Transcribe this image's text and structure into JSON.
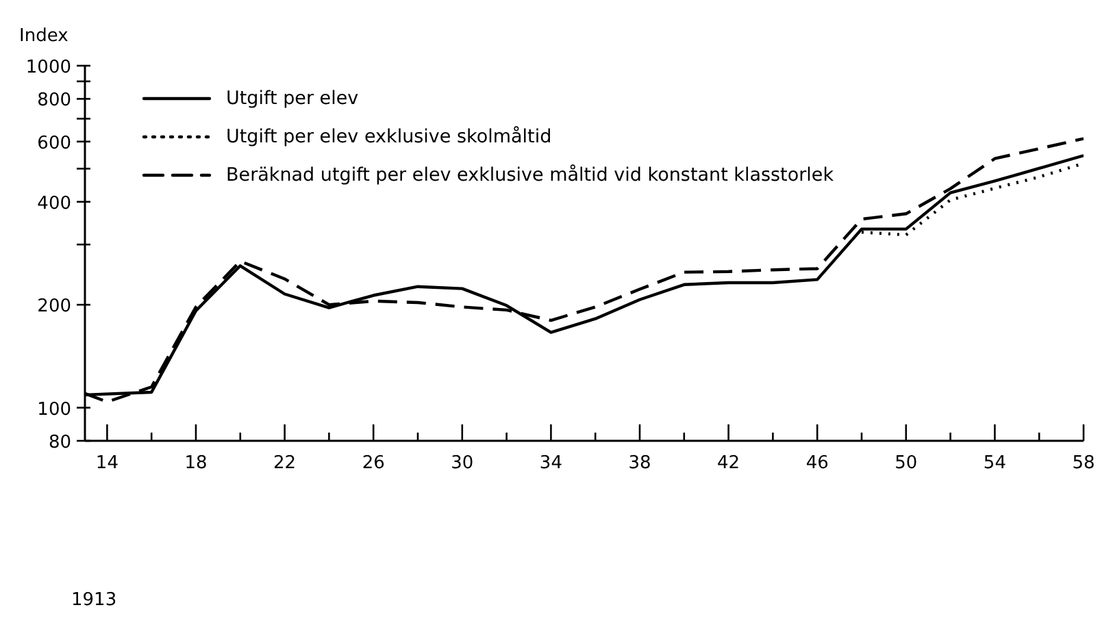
{
  "chart_data": {
    "type": "line",
    "ylabel": "Index",
    "annotations": [
      "1913"
    ],
    "log": "y",
    "legend": "top left",
    "marker": "none",
    "xlim": [
      1913,
      1958
    ],
    "xticks": [
      {
        "value": 1914,
        "label": "14"
      },
      {
        "value": 1916,
        "label": null
      },
      {
        "value": 1918,
        "label": "18"
      },
      {
        "value": 1920,
        "label": null
      },
      {
        "value": 1922,
        "label": "22"
      },
      {
        "value": 1924,
        "label": null
      },
      {
        "value": 1926,
        "label": "26"
      },
      {
        "value": 1928,
        "label": null
      },
      {
        "value": 1930,
        "label": "30"
      },
      {
        "value": 1932,
        "label": null
      },
      {
        "value": 1934,
        "label": "34"
      },
      {
        "value": 1936,
        "label": null
      },
      {
        "value": 1938,
        "label": "38"
      },
      {
        "value": 1940,
        "label": null
      },
      {
        "value": 1942,
        "label": "42"
      },
      {
        "value": 1944,
        "label": null
      },
      {
        "value": 1946,
        "label": "46"
      },
      {
        "value": 1948,
        "label": null
      },
      {
        "value": 1950,
        "label": "50"
      },
      {
        "value": 1952,
        "label": null
      },
      {
        "value": 1954,
        "label": "54"
      },
      {
        "value": 1956,
        "label": null
      },
      {
        "value": 1958,
        "label": "58"
      }
    ],
    "ylim": [
      80,
      1000
    ],
    "yticks": [
      80,
      100,
      200,
      {
        "value": 300,
        "label": null
      },
      400,
      {
        "value": 500,
        "label": null
      },
      600,
      {
        "value": 700,
        "label": null
      },
      800,
      {
        "value": 900,
        "label": null
      },
      1000
    ],
    "series": [
      {
        "name": "Utgift per elev",
        "color": "#000000",
        "line_style": "solid",
        "x": [
          1913,
          1916,
          1918,
          1920,
          1922,
          1924,
          1926,
          1928,
          1930,
          1932,
          1934,
          1936,
          1938,
          1940,
          1942,
          1944,
          1946,
          1948,
          1950,
          1952,
          1954,
          1956,
          1958
        ],
        "values": [
          109,
          111,
          192,
          260,
          215,
          196,
          213,
          226,
          223,
          199,
          166,
          182,
          207,
          229,
          232,
          232,
          237,
          333,
          333,
          425,
          460,
          501,
          546
        ]
      },
      {
        "name": "Utgift per elev exklusive skolmåltid",
        "color": "#000000",
        "line_style": "dotted",
        "x": [
          1948,
          1950,
          1952,
          1954,
          1956,
          1958
        ],
        "values": [
          326,
          320,
          405,
          438,
          473,
          518
        ]
      },
      {
        "name": "Beräknad utgift per elev exklusive måltid vid konstant klasstorlek",
        "color": "#000000",
        "line_style": "dashed",
        "x": [
          1913,
          1914,
          1916,
          1918,
          1920,
          1922,
          1924,
          1926,
          1928,
          1930,
          1932,
          1934,
          1936,
          1938,
          1940,
          1942,
          1944,
          1946,
          1948,
          1950,
          1952,
          1954,
          1956,
          1958
        ],
        "values": [
          110,
          104,
          115,
          197,
          268,
          238,
          200,
          205,
          203,
          197,
          193,
          180,
          197,
          222,
          249,
          250,
          253,
          255,
          356,
          369,
          437,
          535,
          572,
          612
        ]
      }
    ]
  }
}
